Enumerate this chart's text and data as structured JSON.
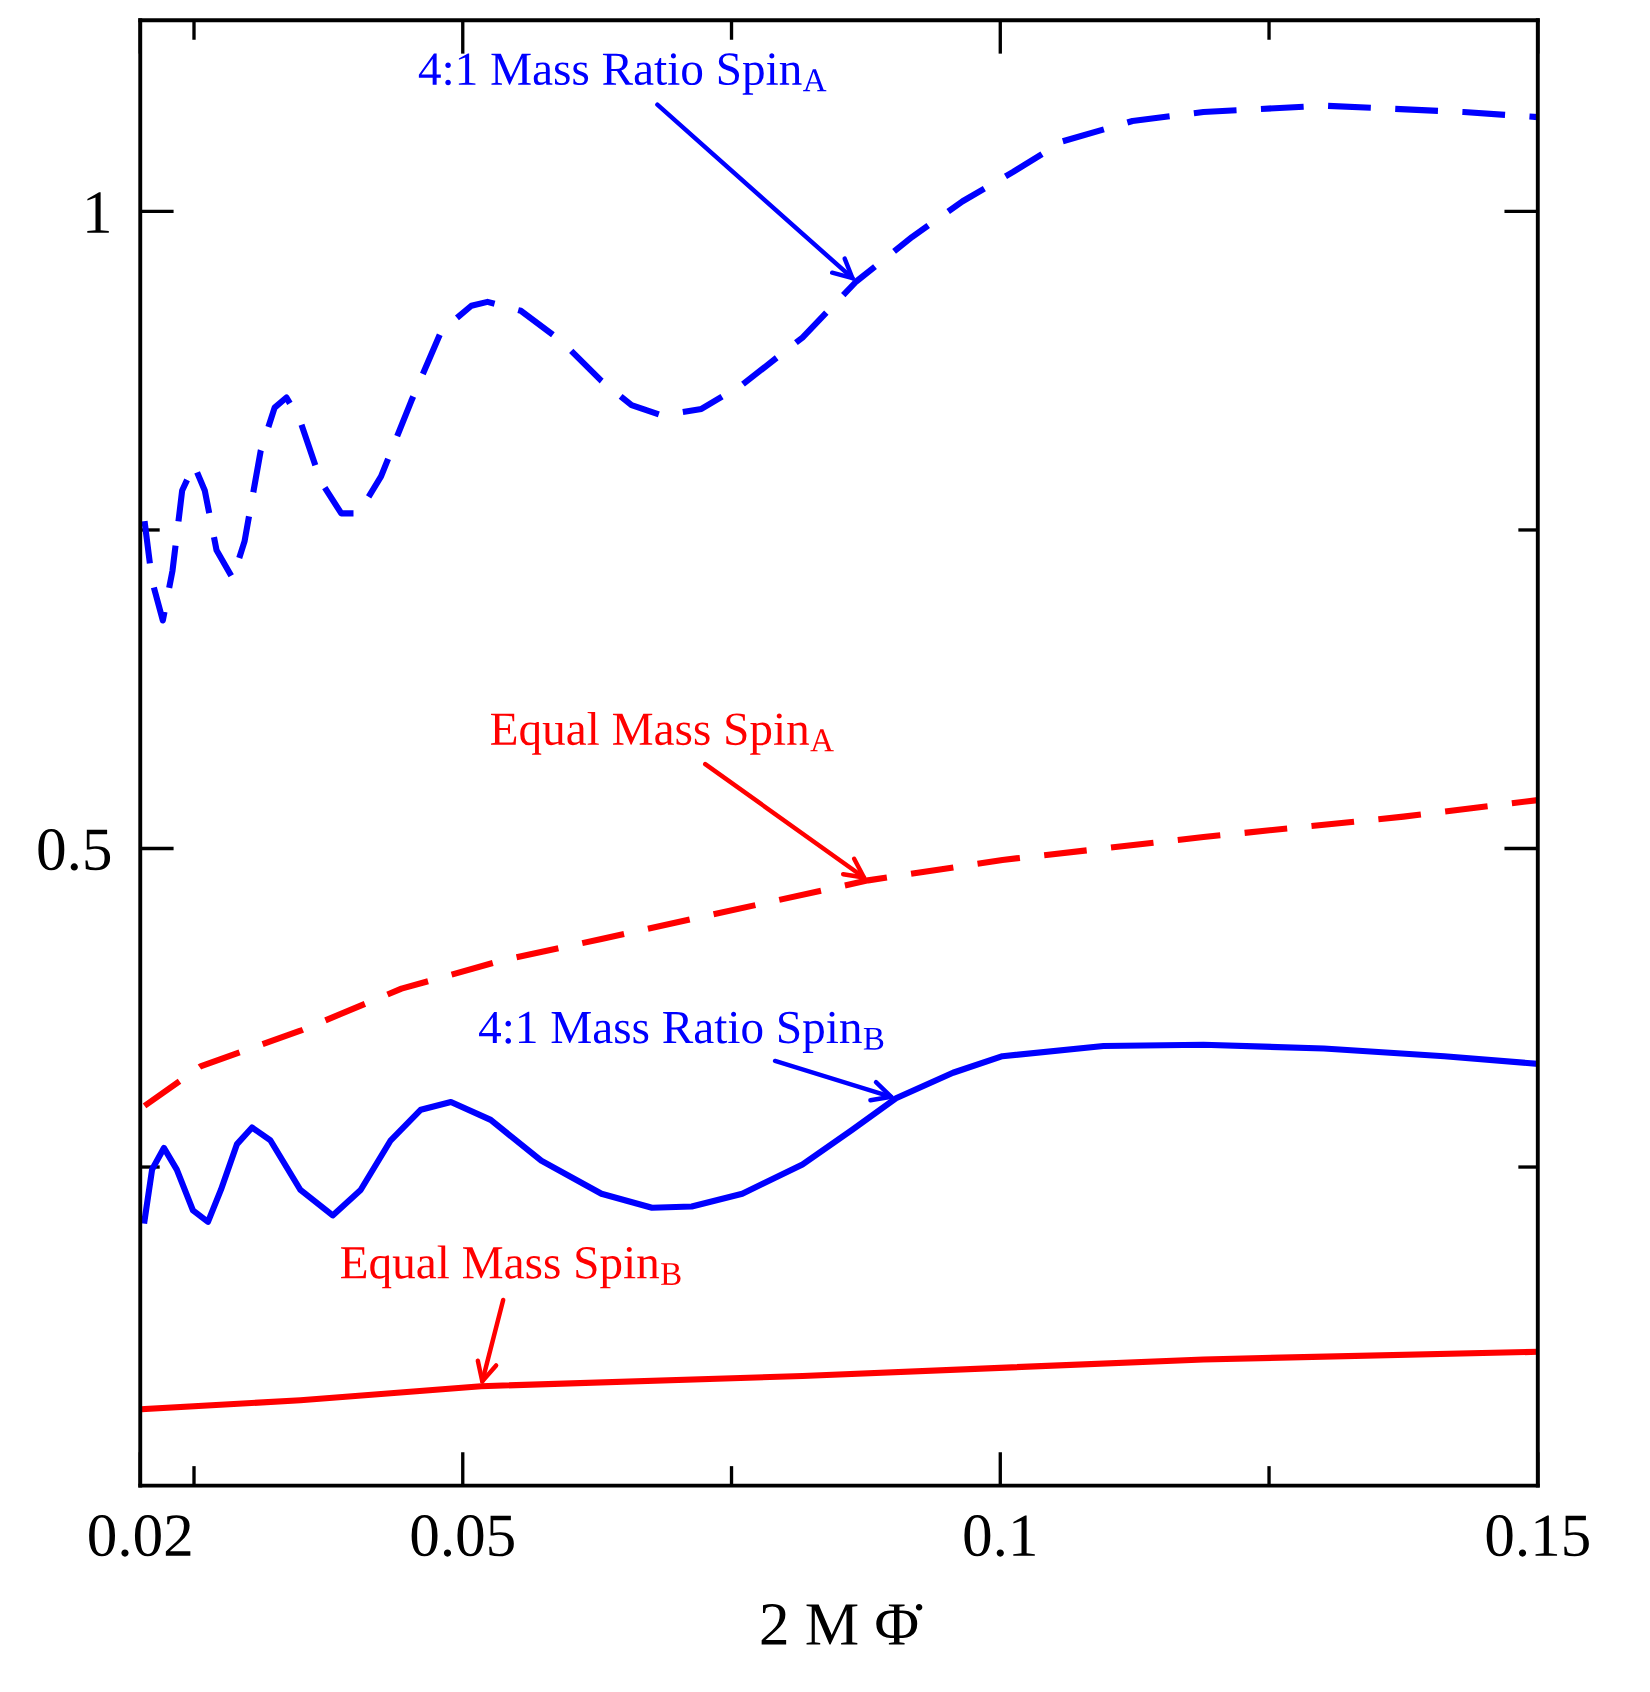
{
  "chart_data": {
    "type": "line",
    "xlabel": "2 M Φ̇",
    "xlim": [
      0.02,
      0.15
    ],
    "xticks": [
      0.02,
      {
        "value": 0.025,
        "label": null
      },
      0.05,
      {
        "value": 0.075,
        "label": null
      },
      0.1,
      {
        "value": 0.125,
        "label": null
      },
      0.15
    ],
    "ylim": [
      0,
      1.15
    ],
    "yticks": [
      {
        "value": 0.25,
        "label": null
      },
      0.5,
      {
        "value": 0.75,
        "label": null
      },
      1
    ],
    "grid": false,
    "legend": false,
    "marker": "none",
    "series": [
      {
        "color": "#0000ff",
        "line_style": "dashed",
        "x": [
          0.0204,
          0.0211,
          0.0221,
          0.023,
          0.0239,
          0.025,
          0.026,
          0.0271,
          0.0286,
          0.0297,
          0.0312,
          0.0325,
          0.0336,
          0.0349,
          0.0368,
          0.0387,
          0.0403,
          0.0424,
          0.0452,
          0.048,
          0.0508,
          0.0523,
          0.0554,
          0.0592,
          0.0629,
          0.0657,
          0.0685,
          0.0722,
          0.076,
          0.0816,
          0.0866,
          0.0918,
          0.0965,
          0.1012,
          0.1058,
          0.1123,
          0.1189,
          0.1301,
          0.1431,
          0.15
        ],
        "values": [
          0.757,
          0.71,
          0.679,
          0.718,
          0.781,
          0.801,
          0.781,
          0.734,
          0.712,
          0.741,
          0.812,
          0.846,
          0.854,
          0.835,
          0.788,
          0.763,
          0.763,
          0.792,
          0.851,
          0.906,
          0.926,
          0.929,
          0.922,
          0.898,
          0.867,
          0.848,
          0.84,
          0.845,
          0.864,
          0.901,
          0.945,
          0.98,
          1.008,
          1.031,
          1.055,
          1.071,
          1.078,
          1.083,
          1.078,
          1.074
        ]
      },
      {
        "color": "#ff0000",
        "line_style": "dashed",
        "x": [
          0.0204,
          0.0256,
          0.0349,
          0.0443,
          0.0536,
          0.0629,
          0.0877,
          0.1002,
          0.1189,
          0.1375,
          0.15
        ],
        "values": [
          0.298,
          0.329,
          0.357,
          0.39,
          0.412,
          0.429,
          0.475,
          0.491,
          0.509,
          0.525,
          0.538
        ]
      },
      {
        "color": "#0000ff",
        "line_style": "solid",
        "x": [
          0.0204,
          0.0211,
          0.0222,
          0.0234,
          0.0249,
          0.0263,
          0.0275,
          0.029,
          0.0304,
          0.0321,
          0.0349,
          0.0379,
          0.0405,
          0.0433,
          0.0461,
          0.0489,
          0.0526,
          0.0573,
          0.0629,
          0.0676,
          0.0713,
          0.076,
          0.0816,
          0.0862,
          0.0903,
          0.0956,
          0.1002,
          0.1096,
          0.1189,
          0.1301,
          0.1413,
          0.15
        ],
        "values": [
          0.208,
          0.248,
          0.265,
          0.248,
          0.216,
          0.207,
          0.232,
          0.268,
          0.281,
          0.271,
          0.232,
          0.212,
          0.232,
          0.271,
          0.295,
          0.301,
          0.287,
          0.255,
          0.229,
          0.218,
          0.219,
          0.229,
          0.252,
          0.279,
          0.304,
          0.324,
          0.337,
          0.345,
          0.346,
          0.343,
          0.337,
          0.331
        ]
      },
      {
        "color": "#ff0000",
        "line_style": "solid",
        "x": [
          0.0204,
          0.0349,
          0.0517,
          0.0816,
          0.1189,
          0.15
        ],
        "values": [
          0.06,
          0.067,
          0.078,
          0.086,
          0.099,
          0.105
        ]
      }
    ],
    "annotations": [
      {
        "text": "4:1 Mass Ratio Spin$_{A}$",
        "x": 0.0866,
        "y": 0.945
      },
      {
        "text": "Equal Mass Spin$_{A}$",
        "x": 0.0877,
        "y": 0.475
      },
      {
        "text": "4:1 Mass Ratio Spin$_{B}$",
        "x": 0.0903,
        "y": 0.304
      },
      {
        "text": "Equal Mass Spin$_{B}$",
        "x": 0.0517,
        "y": 0.078
      }
    ]
  }
}
